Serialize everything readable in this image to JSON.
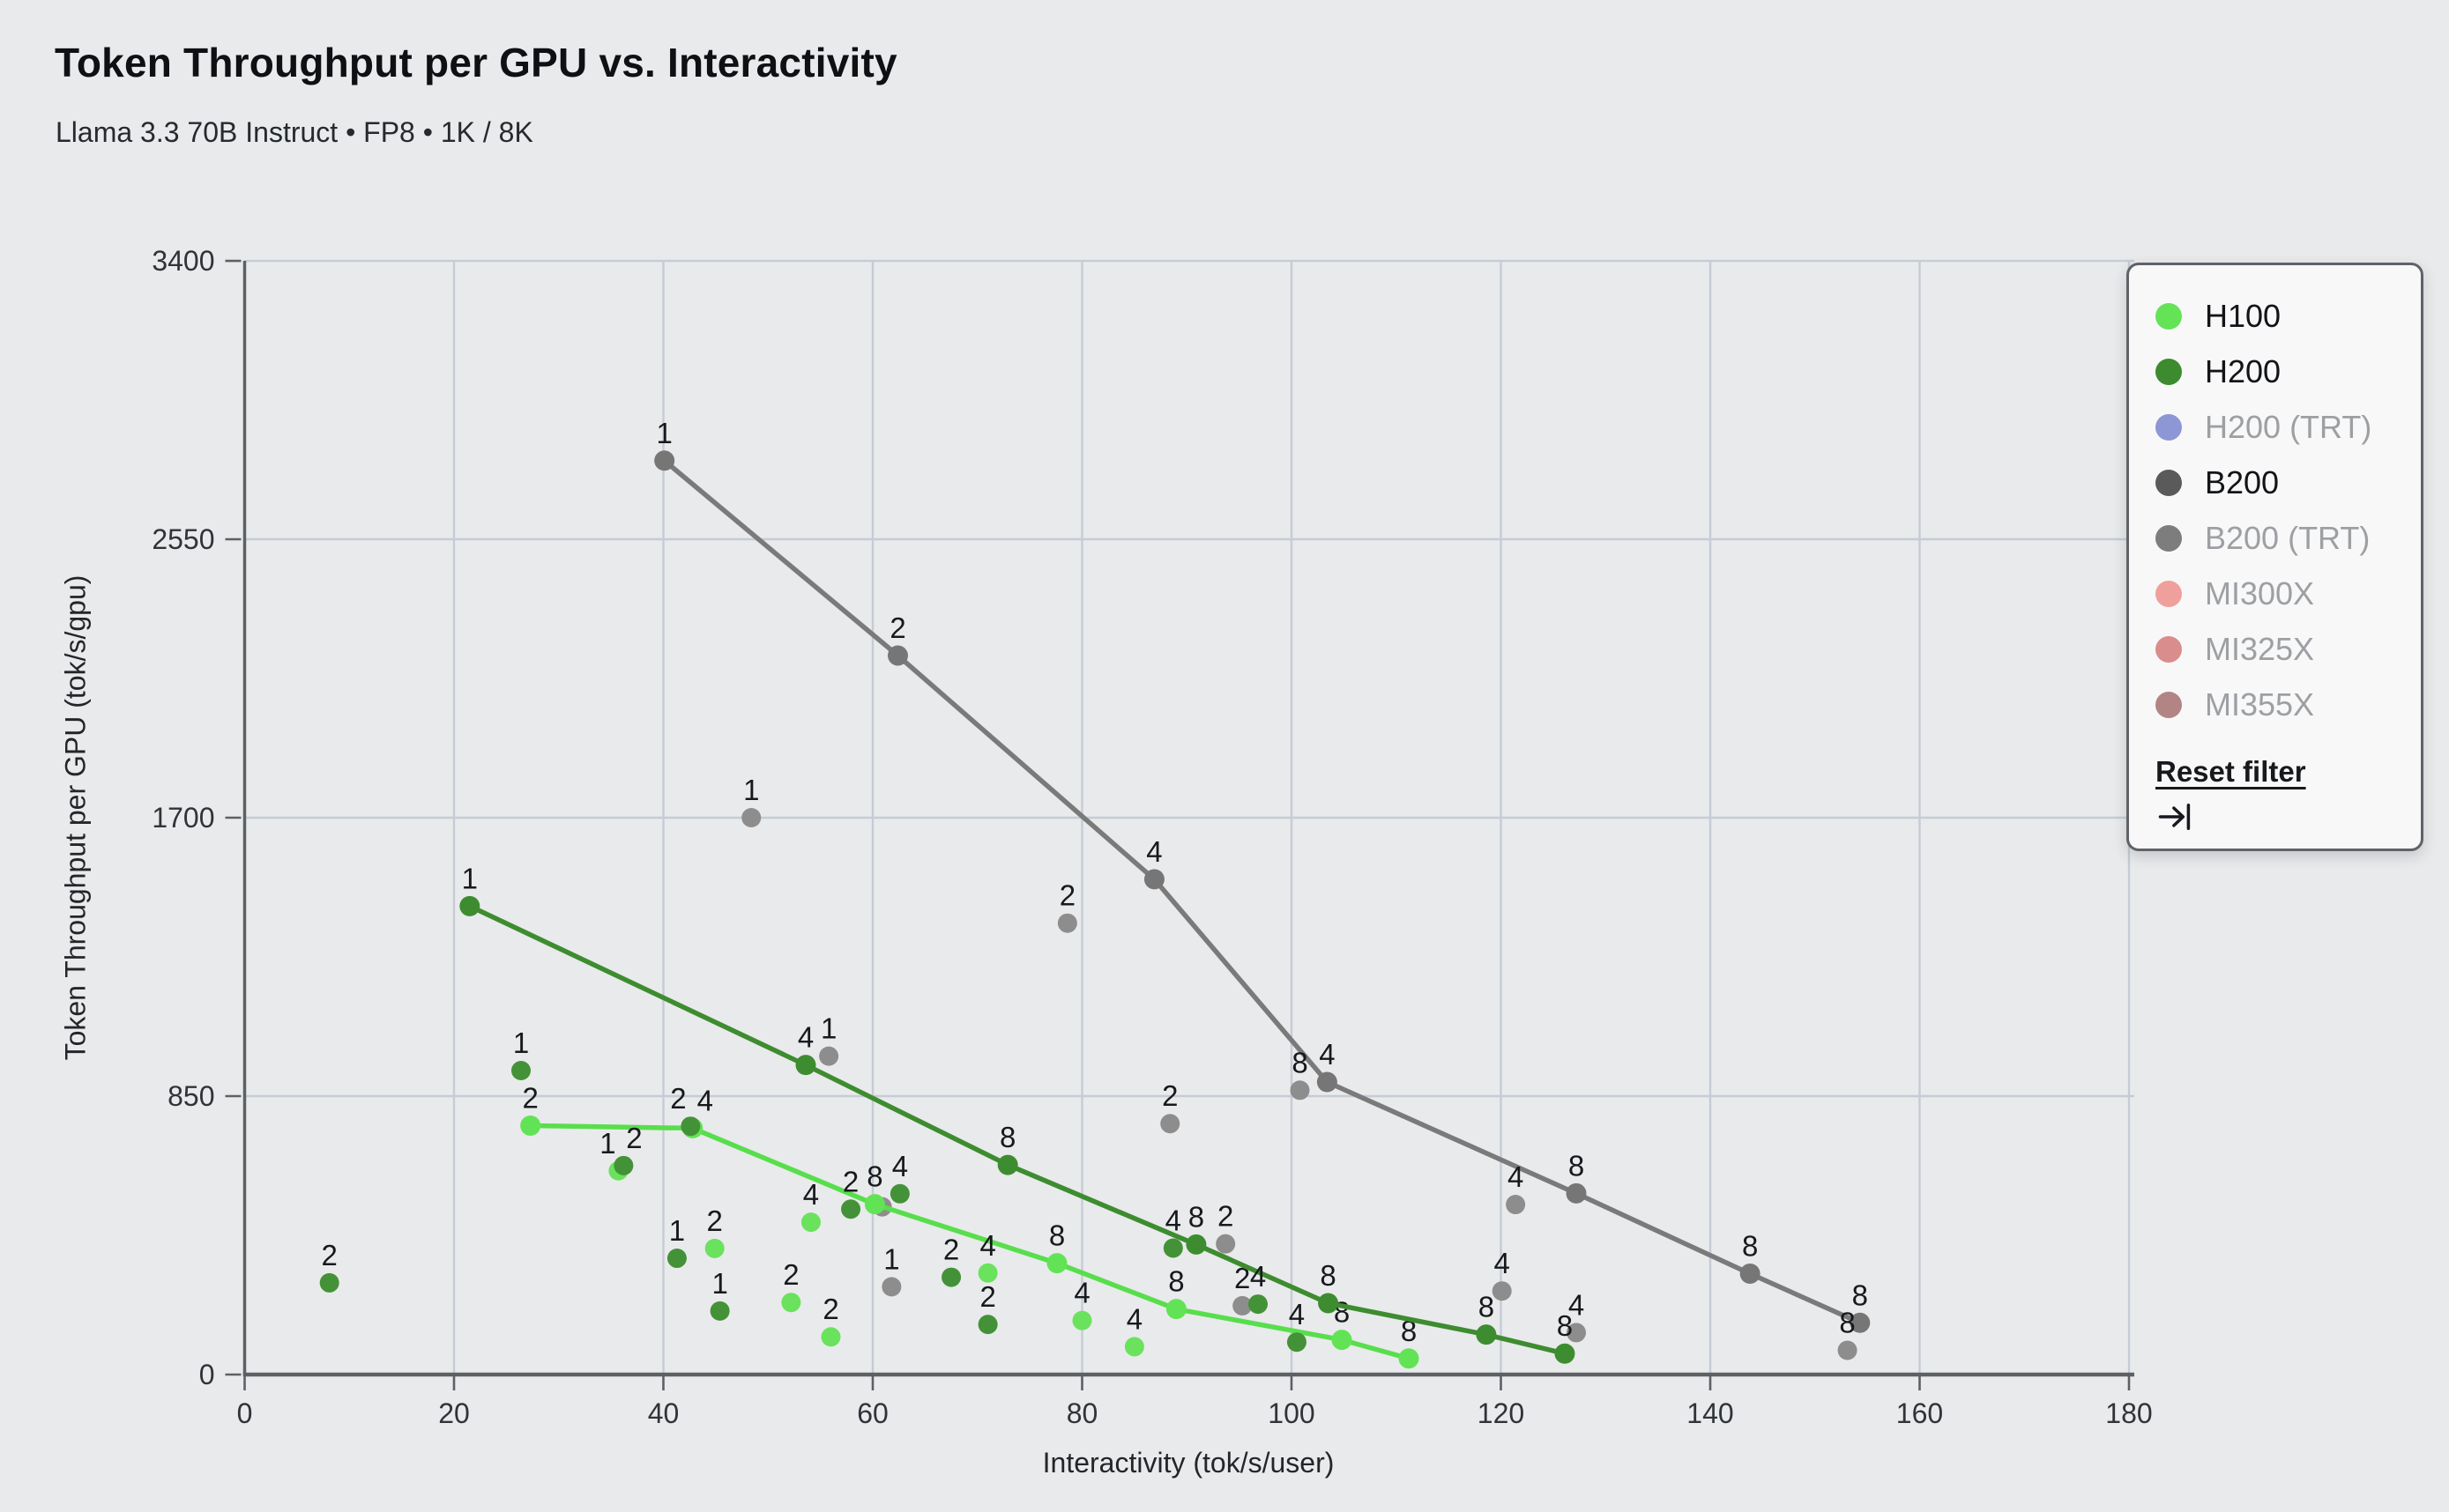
{
  "header": {
    "title": "Token Throughput per GPU vs. Interactivity",
    "subtitle": "Llama 3.3 70B Instruct • FP8 • 1K / 8K"
  },
  "chart_data": {
    "type": "scatter",
    "title": "Token Throughput per GPU vs. Interactivity",
    "subtitle": "Llama 3.3 70B Instruct • FP8 • 1K / 8K",
    "xlabel": "Interactivity (tok/s/user)",
    "ylabel": "Token Throughput per GPU (tok/s/gpu)",
    "xlim": [
      0,
      180
    ],
    "ylim": [
      0,
      3400
    ],
    "xticks": [
      0,
      20,
      40,
      60,
      80,
      100,
      120,
      140,
      160,
      180
    ],
    "yticks": [
      0,
      850,
      1700,
      2550,
      3400
    ],
    "grid": true,
    "point_label_note": "each point is annotated with its GPU count (1, 2, 4 or 8)",
    "series": [
      {
        "name": "B200",
        "line_color": "#7a7a7a",
        "dot_color": "#767676",
        "scatter_color": "#8d8d8d",
        "frontier_line": [
          [
            40.1,
            2790,
            "1"
          ],
          [
            62.4,
            2195,
            "2"
          ],
          [
            86.9,
            1512,
            "4"
          ],
          [
            103.4,
            893,
            "4"
          ],
          [
            127.2,
            553,
            "8"
          ],
          [
            143.8,
            308,
            "8"
          ],
          [
            154.3,
            158,
            "8"
          ]
        ],
        "scatter": [
          [
            48.4,
            1700,
            "1"
          ],
          [
            55.8,
            972,
            "1"
          ],
          [
            60.9,
            512,
            ""
          ],
          [
            61.8,
            268,
            "1"
          ],
          [
            78.6,
            1378,
            "2"
          ],
          [
            88.4,
            766,
            "2"
          ],
          [
            93.7,
            399,
            "2"
          ],
          [
            95.3,
            210,
            "2"
          ],
          [
            100.8,
            868,
            "8"
          ],
          [
            120.1,
            255,
            "4"
          ],
          [
            121.4,
            519,
            "4"
          ],
          [
            127.2,
            128,
            "4"
          ],
          [
            153.1,
            74,
            "8"
          ]
        ]
      },
      {
        "name": "H100",
        "line_color": "#58de4c",
        "dot_color": "#62e356",
        "scatter_color": "#6ae25d",
        "frontier_line": [
          [
            27.3,
            760,
            "2"
          ],
          [
            42.8,
            752,
            "4",
            14
          ],
          [
            60.2,
            520,
            "8"
          ],
          [
            77.6,
            340,
            "8"
          ],
          [
            89,
            200,
            "8"
          ],
          [
            104.8,
            106,
            "8"
          ],
          [
            111.2,
            49,
            "8"
          ]
        ],
        "scatter": [
          [
            35.7,
            622,
            "1",
            -12
          ],
          [
            44.9,
            385,
            "2"
          ],
          [
            52.2,
            220,
            "2"
          ],
          [
            54.1,
            465,
            "4"
          ],
          [
            56,
            115,
            "2"
          ],
          [
            71,
            310,
            "4"
          ],
          [
            80,
            165,
            "4"
          ],
          [
            85,
            85,
            "4"
          ]
        ]
      },
      {
        "name": "H200",
        "line_color": "#3e8c30",
        "dot_color": "#3e8c30",
        "scatter_color": "#449238",
        "frontier_line": [
          [
            21.5,
            1430,
            "1"
          ],
          [
            53.6,
            945,
            "4"
          ],
          [
            72.9,
            640,
            "8"
          ],
          [
            90.9,
            397,
            "8"
          ],
          [
            103.5,
            218,
            "8"
          ],
          [
            118.6,
            122,
            "8"
          ],
          [
            126.1,
            64,
            "8"
          ]
        ],
        "scatter": [
          [
            8.1,
            280,
            "2"
          ],
          [
            26.4,
            928,
            "1"
          ],
          [
            36.2,
            638,
            "2",
            12
          ],
          [
            41.3,
            355,
            "1"
          ],
          [
            42.6,
            758,
            "2",
            -14
          ],
          [
            45.4,
            194,
            "1"
          ],
          [
            57.9,
            505,
            "2"
          ],
          [
            62.6,
            552,
            "4"
          ],
          [
            67.5,
            297,
            "2"
          ],
          [
            71,
            153,
            "2"
          ],
          [
            88.7,
            386,
            "4"
          ],
          [
            96.8,
            215,
            "4"
          ],
          [
            100.5,
            99,
            "4"
          ]
        ]
      }
    ],
    "legend_position": "upper right"
  },
  "legend": {
    "items": [
      {
        "label": "H100",
        "color": "#64e357",
        "active": true
      },
      {
        "label": "H200",
        "color": "#3d8b2f",
        "active": true
      },
      {
        "label": "H200 (TRT)",
        "color": "#8d97d6",
        "active": false
      },
      {
        "label": "B200",
        "color": "#5a5a5a",
        "active": true
      },
      {
        "label": "B200 (TRT)",
        "color": "#7d7d7d",
        "active": false
      },
      {
        "label": "MI300X",
        "color": "#f0a09c",
        "active": false
      },
      {
        "label": "MI325X",
        "color": "#d98d8d",
        "active": false
      },
      {
        "label": "MI355X",
        "color": "#b28584",
        "active": false
      }
    ],
    "reset_label": "Reset filter"
  }
}
